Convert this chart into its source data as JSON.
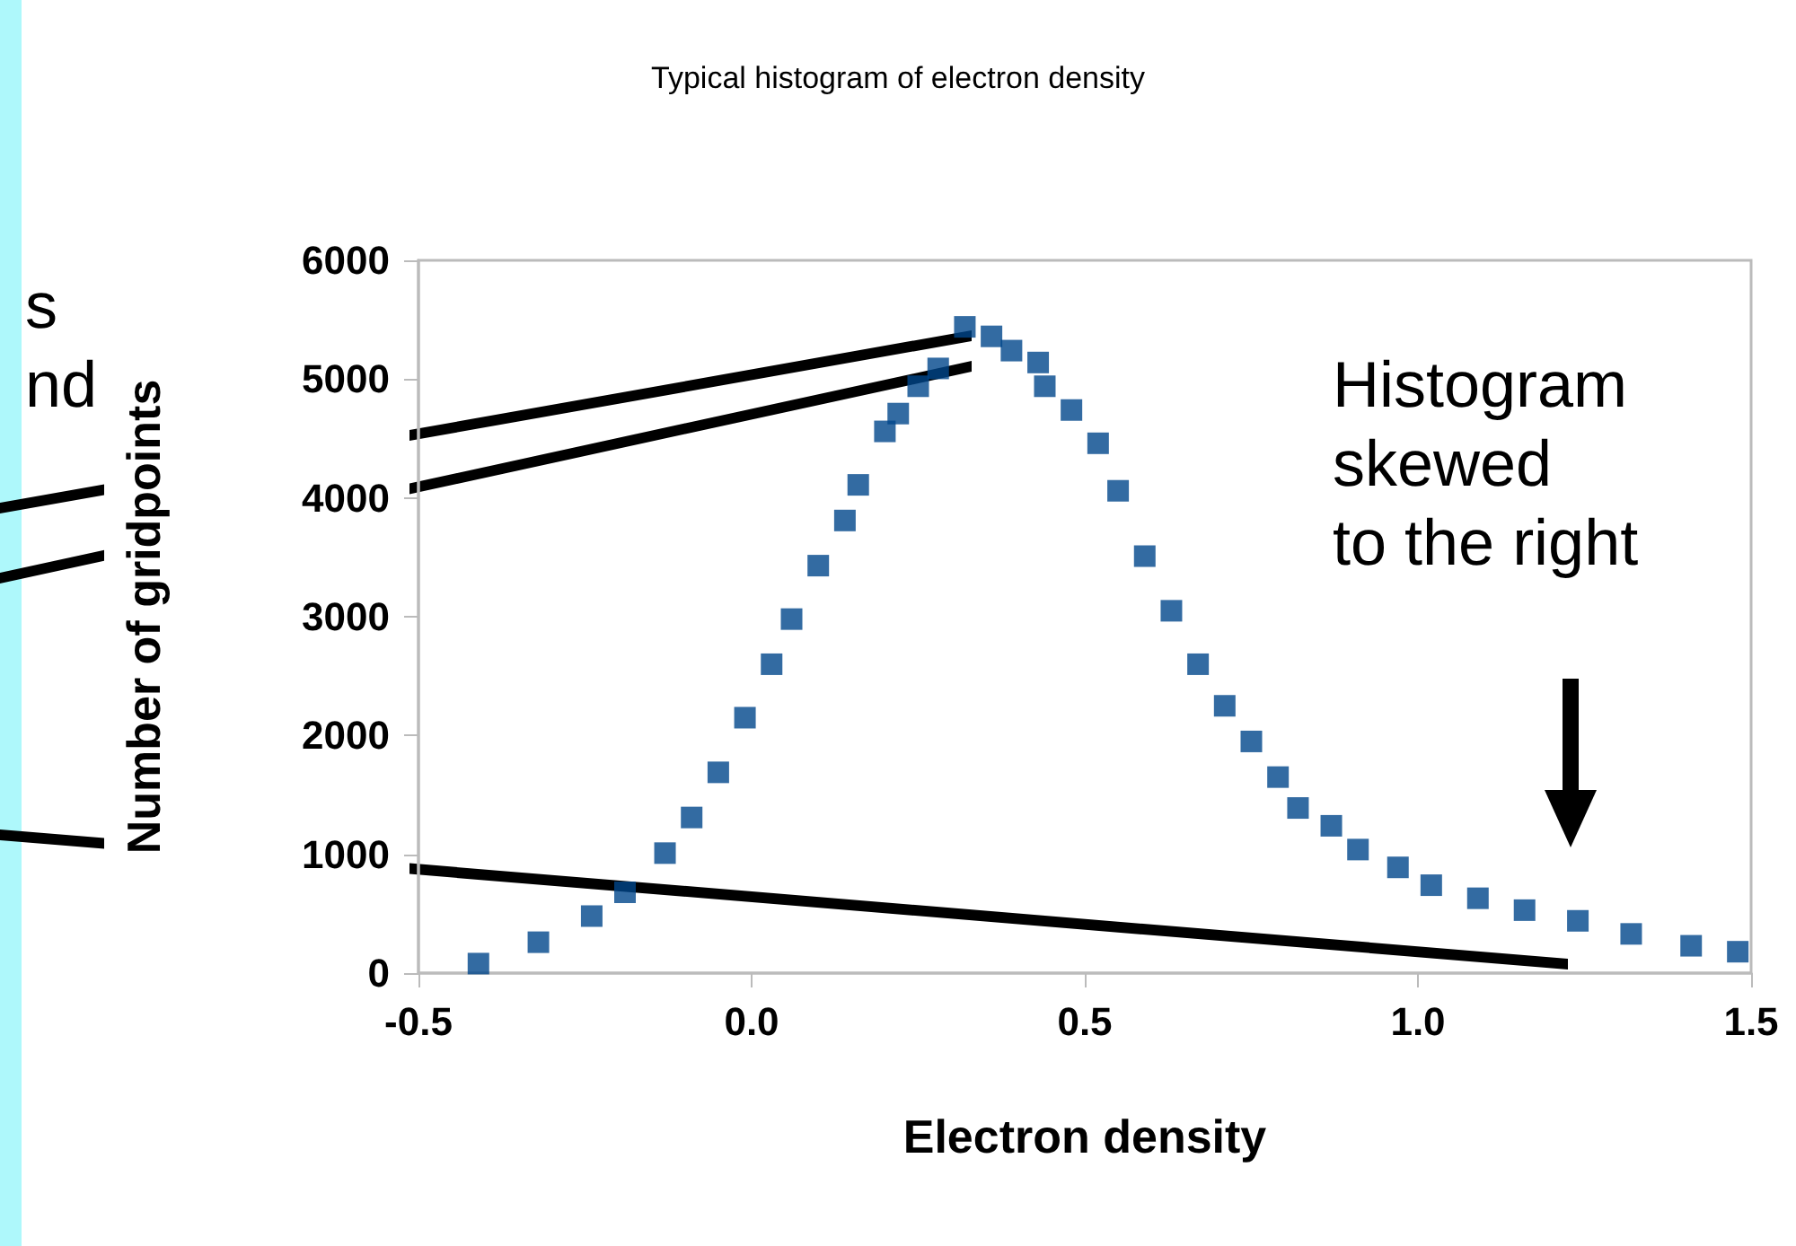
{
  "chart_data": {
    "type": "scatter",
    "title": "Typical histogram of electron density",
    "xlabel": "Electron density",
    "ylabel": "Number of gridpoints",
    "annotations": [
      "Histogram\nskewed\nto the right",
      "s",
      "nd"
    ],
    "x": [
      -0.41,
      -0.32,
      -0.24,
      -0.19,
      -0.13,
      -0.09,
      -0.05,
      -0.01,
      0.03,
      0.06,
      0.1,
      0.14,
      0.16,
      0.2,
      0.22,
      0.25,
      0.28,
      0.32,
      0.36,
      0.39,
      0.43,
      0.44,
      0.48,
      0.52,
      0.55,
      0.59,
      0.63,
      0.67,
      0.71,
      0.75,
      0.79,
      0.82,
      0.87,
      0.91,
      0.97,
      1.02,
      1.09,
      1.16,
      1.24,
      1.32,
      1.41,
      1.48
    ],
    "series": [
      {
        "color": "#00468b",
        "values": [
          80,
          260,
          480,
          680,
          1010,
          1310,
          1690,
          2150,
          2600,
          2980,
          3430,
          3810,
          4110,
          4560,
          4710,
          4940,
          5090,
          5440,
          5360,
          5240,
          5140,
          4940,
          4740,
          4460,
          4060,
          3510,
          3050,
          2600,
          2250,
          1950,
          1650,
          1390,
          1240,
          1040,
          890,
          740,
          630,
          530,
          440,
          330,
          230,
          180
        ]
      }
    ],
    "marker": "square",
    "grid": false,
    "xlim": [
      -0.5,
      1.5
    ],
    "xticks": [
      {
        "value": -0.5,
        "label": "-0.5"
      },
      {
        "value": 0,
        "label": "0.0"
      },
      {
        "value": 0.5,
        "label": "0.5"
      },
      {
        "value": 1,
        "label": "1.0"
      },
      {
        "value": 1.5,
        "label": "1.5"
      }
    ],
    "ylim": [
      0,
      6000
    ],
    "yticks": [
      0,
      1000,
      2000,
      3000,
      4000,
      5000,
      6000
    ]
  }
}
